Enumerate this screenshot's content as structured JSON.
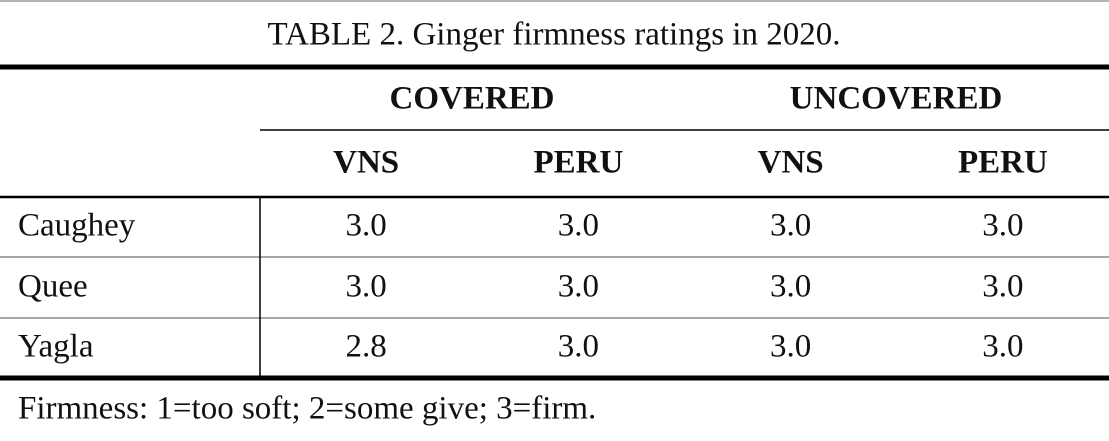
{
  "title": "TABLE 2. Ginger firmness ratings in 2020.",
  "table": {
    "groups": [
      "COVERED",
      "UNCOVERED"
    ],
    "columns": [
      "VNS",
      "PERU",
      "VNS",
      "PERU"
    ],
    "rows": [
      [
        "Caughey",
        "3.0",
        "3.0",
        "3.0",
        "3.0"
      ],
      [
        "Quee",
        "3.0",
        "3.0",
        "3.0",
        "3.0"
      ],
      [
        "Yagla",
        "2.8",
        "3.0",
        "3.0",
        "3.0"
      ]
    ]
  },
  "footnote": "Firmness: 1=too soft; 2=some give; 3=firm."
}
